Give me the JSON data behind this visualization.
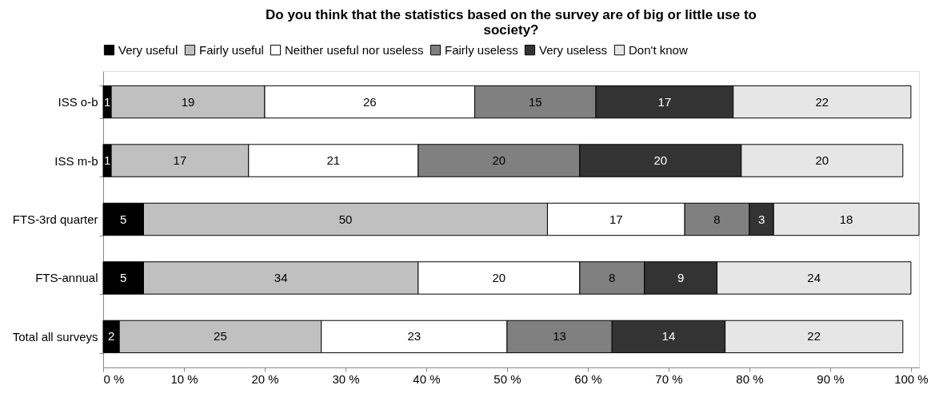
{
  "chart_data": {
    "type": "bar",
    "orientation": "horizontal",
    "stacked": true,
    "title": "Do you think that the statistics based on the survey are of big or little use to society?",
    "categories": [
      "ISS o-b",
      "ISS m-b",
      "FTS-3rd quarter",
      "FTS-annual",
      "Total all surveys"
    ],
    "series": [
      {
        "name": "Very useful",
        "color": "#000000",
        "values": [
          1,
          1,
          5,
          5,
          2
        ]
      },
      {
        "name": "Fairly useful",
        "color": "#c0c0c0",
        "values": [
          19,
          17,
          50,
          34,
          25
        ]
      },
      {
        "name": "Neither useful nor useless",
        "color": "#ffffff",
        "values": [
          26,
          21,
          17,
          20,
          23
        ]
      },
      {
        "name": "Fairly useless",
        "color": "#808080",
        "values": [
          15,
          20,
          8,
          8,
          13
        ]
      },
      {
        "name": "Very useless",
        "color": "#333333",
        "values": [
          17,
          20,
          3,
          9,
          14
        ]
      },
      {
        "name": "Don't know",
        "color": "#e6e6e6",
        "values": [
          22,
          20,
          18,
          24,
          22
        ]
      }
    ],
    "xlim": [
      0,
      101
    ],
    "xticks": [
      {
        "value": 0,
        "label": "0 %"
      },
      {
        "value": 10,
        "label": "10 %"
      },
      {
        "value": 20,
        "label": "20 %"
      },
      {
        "value": 30,
        "label": "30 %"
      },
      {
        "value": 40,
        "label": "40 %"
      },
      {
        "value": 50,
        "label": "50 %"
      },
      {
        "value": 60,
        "label": "60 %"
      },
      {
        "value": 70,
        "label": "70 %"
      },
      {
        "value": 80,
        "label": "80 %"
      },
      {
        "value": 90,
        "label": "90 %"
      },
      {
        "value": 100,
        "label": "100 %"
      }
    ],
    "data_labels": true,
    "legend": "top",
    "grid": false
  }
}
